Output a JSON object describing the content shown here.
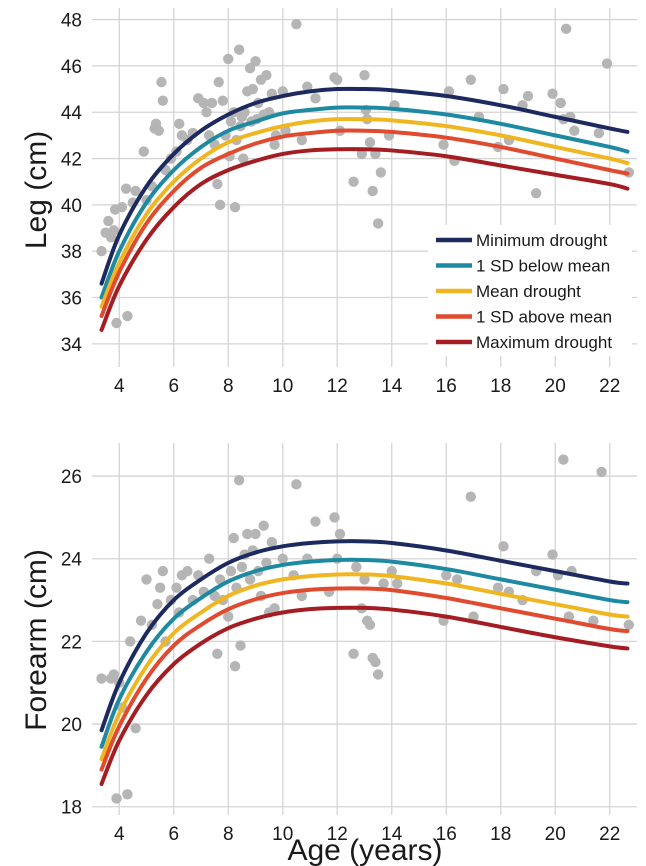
{
  "chart_data": [
    {
      "type": "scatter",
      "panel": "top",
      "xlabel": "",
      "ylabel": "Leg (cm)",
      "xlim": [
        3,
        23
      ],
      "ylim": [
        33,
        48.5
      ],
      "xticks": [
        4,
        6,
        8,
        10,
        12,
        14,
        16,
        18,
        20,
        22
      ],
      "yticks": [
        34,
        36,
        38,
        40,
        42,
        44,
        46,
        48
      ],
      "grid": true,
      "legend_position": "bottom-right",
      "point_color": "#b5b5b5",
      "points": [
        [
          3.35,
          38.0
        ],
        [
          3.5,
          38.8
        ],
        [
          3.6,
          39.3
        ],
        [
          3.7,
          38.6
        ],
        [
          3.8,
          38.9
        ],
        [
          3.85,
          39.8
        ],
        [
          3.9,
          34.9
        ],
        [
          4.1,
          39.9
        ],
        [
          4.25,
          40.7
        ],
        [
          4.3,
          35.2
        ],
        [
          4.5,
          40.1
        ],
        [
          4.6,
          40.6
        ],
        [
          4.9,
          42.3
        ],
        [
          5.0,
          40.2
        ],
        [
          5.2,
          40.8
        ],
        [
          5.3,
          43.3
        ],
        [
          5.35,
          43.5
        ],
        [
          5.45,
          43.2
        ],
        [
          5.55,
          45.3
        ],
        [
          5.6,
          44.5
        ],
        [
          5.7,
          41.5
        ],
        [
          5.9,
          42.0
        ],
        [
          6.1,
          42.3
        ],
        [
          6.2,
          43.5
        ],
        [
          6.3,
          43.0
        ],
        [
          6.5,
          42.8
        ],
        [
          6.7,
          43.1
        ],
        [
          6.9,
          44.6
        ],
        [
          7.1,
          44.4
        ],
        [
          7.2,
          44.0
        ],
        [
          7.3,
          43.0
        ],
        [
          7.4,
          44.4
        ],
        [
          7.5,
          42.6
        ],
        [
          7.6,
          40.9
        ],
        [
          7.65,
          45.3
        ],
        [
          7.7,
          40.0
        ],
        [
          7.8,
          44.5
        ],
        [
          7.9,
          43.0
        ],
        [
          8.0,
          46.3
        ],
        [
          8.05,
          42.1
        ],
        [
          8.1,
          43.6
        ],
        [
          8.2,
          44.0
        ],
        [
          8.25,
          39.9
        ],
        [
          8.3,
          42.8
        ],
        [
          8.4,
          46.7
        ],
        [
          8.45,
          43.4
        ],
        [
          8.5,
          43.8
        ],
        [
          8.55,
          42.0
        ],
        [
          8.6,
          44.0
        ],
        [
          8.7,
          44.9
        ],
        [
          8.8,
          45.9
        ],
        [
          8.85,
          43.6
        ],
        [
          8.9,
          45.0
        ],
        [
          9.0,
          46.2
        ],
        [
          9.05,
          43.7
        ],
        [
          9.1,
          44.4
        ],
        [
          9.2,
          45.4
        ],
        [
          9.3,
          43.9
        ],
        [
          9.4,
          45.6
        ],
        [
          9.5,
          44.0
        ],
        [
          9.6,
          44.8
        ],
        [
          9.7,
          42.6
        ],
        [
          9.75,
          43.0
        ],
        [
          10.0,
          44.9
        ],
        [
          10.1,
          43.2
        ],
        [
          10.5,
          47.8
        ],
        [
          10.7,
          42.8
        ],
        [
          10.9,
          45.1
        ],
        [
          11.2,
          44.6
        ],
        [
          11.9,
          45.5
        ],
        [
          12.0,
          45.4
        ],
        [
          12.1,
          43.2
        ],
        [
          12.6,
          41.0
        ],
        [
          12.9,
          42.2
        ],
        [
          13.0,
          45.6
        ],
        [
          13.05,
          44.1
        ],
        [
          13.1,
          43.7
        ],
        [
          13.2,
          42.7
        ],
        [
          13.3,
          40.6
        ],
        [
          13.4,
          42.2
        ],
        [
          13.5,
          39.2
        ],
        [
          13.6,
          41.4
        ],
        [
          13.9,
          43.0
        ],
        [
          14.1,
          44.3
        ],
        [
          15.9,
          42.6
        ],
        [
          16.1,
          44.9
        ],
        [
          16.3,
          41.9
        ],
        [
          16.9,
          45.4
        ],
        [
          17.2,
          43.8
        ],
        [
          17.9,
          42.5
        ],
        [
          18.1,
          45.0
        ],
        [
          18.3,
          42.8
        ],
        [
          18.8,
          44.3
        ],
        [
          19.0,
          44.7
        ],
        [
          19.3,
          40.5
        ],
        [
          19.9,
          44.8
        ],
        [
          20.2,
          44.4
        ],
        [
          20.3,
          43.7
        ],
        [
          20.4,
          47.6
        ],
        [
          20.55,
          43.8
        ],
        [
          20.7,
          43.2
        ],
        [
          21.6,
          43.1
        ],
        [
          21.9,
          46.1
        ],
        [
          22.7,
          41.4
        ]
      ],
      "series": [
        {
          "name": "Minimum drought",
          "color": "#1c2a60",
          "x": [
            3.35,
            4,
            5,
            6,
            7,
            8,
            9,
            10,
            11,
            12,
            13,
            14,
            16,
            18,
            20,
            22,
            22.65
          ],
          "y": [
            36.6,
            38.7,
            40.8,
            42.2,
            43.2,
            43.9,
            44.4,
            44.7,
            44.9,
            45.0,
            45.0,
            44.95,
            44.7,
            44.3,
            43.8,
            43.3,
            43.15
          ]
        },
        {
          "name": "1 SD below mean",
          "color": "#1e8aa2",
          "x": [
            3.35,
            4,
            5,
            6,
            7,
            8,
            9,
            10,
            11,
            12,
            13,
            14,
            16,
            18,
            20,
            22,
            22.65
          ],
          "y": [
            36.0,
            38.0,
            40.1,
            41.5,
            42.5,
            43.2,
            43.6,
            43.95,
            44.1,
            44.2,
            44.2,
            44.15,
            43.9,
            43.5,
            43.0,
            42.5,
            42.3
          ]
        },
        {
          "name": "Mean drought",
          "color": "#f0b622",
          "x": [
            3.35,
            4,
            5,
            6,
            7,
            8,
            9,
            10,
            11,
            12,
            13,
            14,
            16,
            18,
            20,
            22,
            22.65
          ],
          "y": [
            35.6,
            37.5,
            39.6,
            41.0,
            42.0,
            42.7,
            43.1,
            43.4,
            43.6,
            43.7,
            43.7,
            43.65,
            43.4,
            43.0,
            42.5,
            42.0,
            41.8
          ]
        },
        {
          "name": "1 SD above mean",
          "color": "#e04a2f",
          "x": [
            3.35,
            4,
            5,
            6,
            7,
            8,
            9,
            10,
            11,
            12,
            13,
            14,
            16,
            18,
            20,
            22,
            22.65
          ],
          "y": [
            35.2,
            37.1,
            39.2,
            40.6,
            41.6,
            42.2,
            42.65,
            42.95,
            43.1,
            43.2,
            43.2,
            43.15,
            42.9,
            42.5,
            42.0,
            41.5,
            41.35
          ]
        },
        {
          "name": "Maximum drought",
          "color": "#a31d22",
          "x": [
            3.35,
            4,
            5,
            6,
            7,
            8,
            9,
            10,
            11,
            12,
            13,
            14,
            16,
            18,
            20,
            22,
            22.65
          ],
          "y": [
            34.6,
            36.5,
            38.5,
            39.9,
            40.9,
            41.5,
            41.9,
            42.2,
            42.35,
            42.4,
            42.4,
            42.35,
            42.1,
            41.7,
            41.3,
            40.9,
            40.7
          ]
        }
      ]
    },
    {
      "type": "scatter",
      "panel": "bottom",
      "xlabel": "Age (years)",
      "ylabel": "Forearm (cm)",
      "xlim": [
        3,
        23
      ],
      "ylim": [
        17.8,
        26.8
      ],
      "xticks": [
        4,
        6,
        8,
        10,
        12,
        14,
        16,
        18,
        20,
        22
      ],
      "yticks": [
        18,
        20,
        22,
        24,
        26
      ],
      "grid": true,
      "point_color": "#b5b5b5",
      "points": [
        [
          3.35,
          21.1
        ],
        [
          3.7,
          21.1
        ],
        [
          3.8,
          21.2
        ],
        [
          3.9,
          18.2
        ],
        [
          4.0,
          21.0
        ],
        [
          4.1,
          20.4
        ],
        [
          4.3,
          18.3
        ],
        [
          4.4,
          22.0
        ],
        [
          4.6,
          19.9
        ],
        [
          4.8,
          22.5
        ],
        [
          5.0,
          23.5
        ],
        [
          5.2,
          22.4
        ],
        [
          5.4,
          22.9
        ],
        [
          5.5,
          23.3
        ],
        [
          5.6,
          23.7
        ],
        [
          5.7,
          22.0
        ],
        [
          5.9,
          23.0
        ],
        [
          6.1,
          23.3
        ],
        [
          6.2,
          22.7
        ],
        [
          6.3,
          23.6
        ],
        [
          6.5,
          23.7
        ],
        [
          6.7,
          23.0
        ],
        [
          6.9,
          23.6
        ],
        [
          7.1,
          23.2
        ],
        [
          7.3,
          24.0
        ],
        [
          7.5,
          23.1
        ],
        [
          7.6,
          21.7
        ],
        [
          7.7,
          23.5
        ],
        [
          7.8,
          23.0
        ],
        [
          8.0,
          22.6
        ],
        [
          8.1,
          23.7
        ],
        [
          8.2,
          24.5
        ],
        [
          8.25,
          21.4
        ],
        [
          8.3,
          23.3
        ],
        [
          8.4,
          25.9
        ],
        [
          8.45,
          21.9
        ],
        [
          8.5,
          23.8
        ],
        [
          8.6,
          24.1
        ],
        [
          8.7,
          24.6
        ],
        [
          8.8,
          23.5
        ],
        [
          8.9,
          24.2
        ],
        [
          9.0,
          24.6
        ],
        [
          9.1,
          23.7
        ],
        [
          9.2,
          23.1
        ],
        [
          9.3,
          24.8
        ],
        [
          9.4,
          23.9
        ],
        [
          9.5,
          22.7
        ],
        [
          9.6,
          24.4
        ],
        [
          9.7,
          22.8
        ],
        [
          10.0,
          24.0
        ],
        [
          10.4,
          23.6
        ],
        [
          10.5,
          25.8
        ],
        [
          10.7,
          23.1
        ],
        [
          10.9,
          24.0
        ],
        [
          11.2,
          24.9
        ],
        [
          11.7,
          23.2
        ],
        [
          11.9,
          25.0
        ],
        [
          12.0,
          24.0
        ],
        [
          12.1,
          24.6
        ],
        [
          12.6,
          21.7
        ],
        [
          12.7,
          23.8
        ],
        [
          12.9,
          22.8
        ],
        [
          13.0,
          23.5
        ],
        [
          13.1,
          22.5
        ],
        [
          13.2,
          22.4
        ],
        [
          13.3,
          21.6
        ],
        [
          13.4,
          21.5
        ],
        [
          13.5,
          21.2
        ],
        [
          13.7,
          23.4
        ],
        [
          14.0,
          23.7
        ],
        [
          14.2,
          23.4
        ],
        [
          15.9,
          22.5
        ],
        [
          16.0,
          23.6
        ],
        [
          16.4,
          23.5
        ],
        [
          16.9,
          25.5
        ],
        [
          17.0,
          22.6
        ],
        [
          17.9,
          23.3
        ],
        [
          18.1,
          24.3
        ],
        [
          18.3,
          23.2
        ],
        [
          18.8,
          23.0
        ],
        [
          19.3,
          23.7
        ],
        [
          19.9,
          24.1
        ],
        [
          20.1,
          23.6
        ],
        [
          20.3,
          26.4
        ],
        [
          20.5,
          22.6
        ],
        [
          20.6,
          23.7
        ],
        [
          21.4,
          22.5
        ],
        [
          21.7,
          26.1
        ],
        [
          22.7,
          22.4
        ]
      ],
      "series": [
        {
          "name": "Minimum drought",
          "color": "#1c2a60",
          "x": [
            3.35,
            4,
            5,
            6,
            7,
            8,
            9,
            10,
            11,
            12,
            13,
            14,
            16,
            18,
            20,
            22,
            22.65
          ],
          "y": [
            19.85,
            21.0,
            22.2,
            23.0,
            23.5,
            23.9,
            24.15,
            24.3,
            24.38,
            24.42,
            24.42,
            24.38,
            24.2,
            23.95,
            23.7,
            23.45,
            23.4
          ]
        },
        {
          "name": "1 SD below mean",
          "color": "#1e8aa2",
          "x": [
            3.35,
            4,
            5,
            6,
            7,
            8,
            9,
            10,
            11,
            12,
            13,
            14,
            16,
            18,
            20,
            22,
            22.65
          ],
          "y": [
            19.45,
            20.6,
            21.75,
            22.55,
            23.05,
            23.45,
            23.7,
            23.85,
            23.93,
            23.97,
            23.97,
            23.93,
            23.75,
            23.5,
            23.25,
            23.0,
            22.95
          ]
        },
        {
          "name": "Mean drought",
          "color": "#f0b622",
          "x": [
            3.35,
            4,
            5,
            6,
            7,
            8,
            9,
            10,
            11,
            12,
            13,
            14,
            16,
            18,
            20,
            22,
            22.65
          ],
          "y": [
            19.15,
            20.25,
            21.4,
            22.2,
            22.7,
            23.1,
            23.35,
            23.5,
            23.58,
            23.62,
            23.62,
            23.58,
            23.4,
            23.15,
            22.9,
            22.65,
            22.6
          ]
        },
        {
          "name": "1 SD above mean",
          "color": "#e04a2f",
          "x": [
            3.35,
            4,
            5,
            6,
            7,
            8,
            9,
            10,
            11,
            12,
            13,
            14,
            16,
            18,
            20,
            22,
            22.65
          ],
          "y": [
            18.9,
            19.95,
            21.1,
            21.9,
            22.4,
            22.78,
            23.02,
            23.17,
            23.25,
            23.28,
            23.28,
            23.24,
            23.05,
            22.8,
            22.55,
            22.3,
            22.25
          ]
        },
        {
          "name": "Maximum drought",
          "color": "#a31d22",
          "x": [
            3.35,
            4,
            5,
            6,
            7,
            8,
            9,
            10,
            11,
            12,
            13,
            14,
            16,
            18,
            20,
            22,
            22.65
          ],
          "y": [
            18.55,
            19.6,
            20.7,
            21.45,
            21.95,
            22.32,
            22.55,
            22.7,
            22.78,
            22.81,
            22.81,
            22.77,
            22.6,
            22.35,
            22.1,
            21.88,
            21.83
          ]
        }
      ]
    }
  ]
}
